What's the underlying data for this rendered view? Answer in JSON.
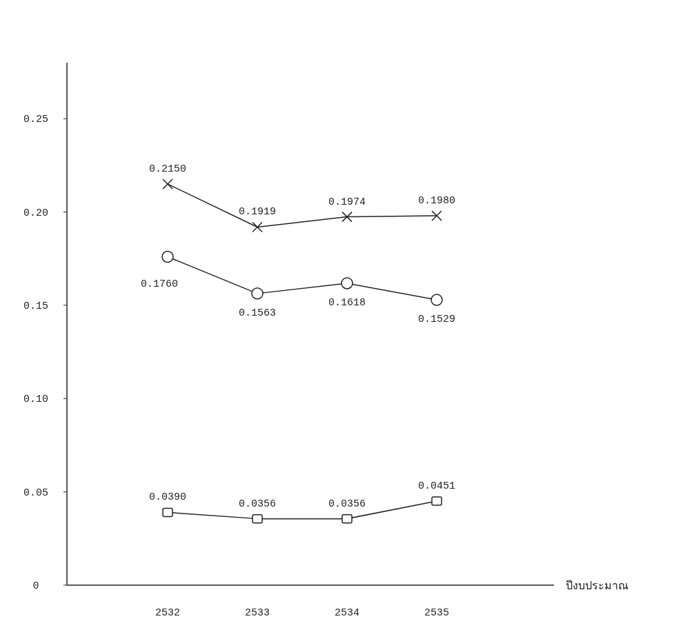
{
  "chart_data": {
    "type": "line",
    "xlabel": "ปีงบประมาณ",
    "categories": [
      "2532",
      "2533",
      "2534",
      "2535"
    ],
    "ylim": [
      0,
      0.28
    ],
    "yticks": [
      0,
      0.05,
      {
        "value": 0.1,
        "label": "0.10"
      },
      0.15,
      {
        "value": 0.2,
        "label": "0.20"
      },
      0.25
    ],
    "grid": false,
    "line_style": "solid",
    "series": [
      {
        "color": "#222222",
        "marker": "cross",
        "values": [
          0.215,
          0.1919,
          0.1974,
          0.198
        ],
        "value_labels": [
          "0.2150",
          "0.1919",
          "0.1974",
          "0.1980"
        ]
      },
      {
        "color": "#222222",
        "marker": "circle",
        "values": [
          0.176,
          0.1563,
          0.1618,
          0.1529
        ],
        "value_labels": [
          "0.1760",
          "0.1563",
          "0.1618",
          "0.1529"
        ]
      },
      {
        "color": "#222222",
        "marker": "square",
        "values": [
          0.039,
          0.0356,
          0.0356,
          0.0451
        ],
        "value_labels": [
          "0.0390",
          "0.0356",
          "0.0356",
          "0.0451"
        ]
      }
    ]
  }
}
